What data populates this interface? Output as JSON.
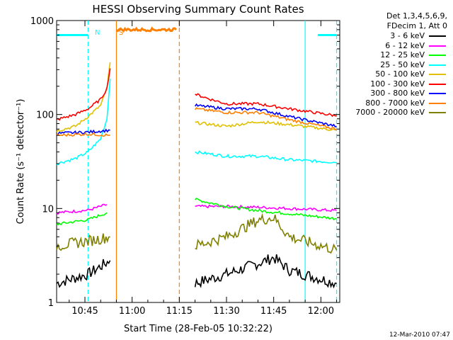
{
  "chart_data": {
    "type": "line",
    "title": "HESSI Observing Summary Count Rates",
    "xlabel": "Start Time (28-Feb-05 10:32:22)",
    "ylabel": "Count Rate (s⁻¹ detector⁻¹)",
    "yscale": "log",
    "ylim": [
      1,
      1000
    ],
    "xlim_minutes": [
      36,
      126
    ],
    "xticks": [
      {
        "value": 45,
        "label": "10:45"
      },
      {
        "value": 60,
        "label": "11:00"
      },
      {
        "value": 75,
        "label": "11:15"
      },
      {
        "value": 90,
        "label": "11:30"
      },
      {
        "value": 105,
        "label": "11:45"
      },
      {
        "value": 120,
        "label": "12:00"
      }
    ],
    "yticks": [
      {
        "value": 1,
        "label": "1"
      },
      {
        "value": 10,
        "label": "10"
      },
      {
        "value": 100,
        "label": "100"
      },
      {
        "value": 1000,
        "label": "1000"
      }
    ],
    "legend_title": [
      "Det 1,3,4,5,6,9,",
      "FDecim 1, Att 0"
    ],
    "series": [
      {
        "name": "3 - 6 keV",
        "color": "#000000",
        "segments": [
          [
            [
              36,
              1.6
            ],
            [
              46,
              2.0
            ],
            [
              53,
              2.8
            ]
          ],
          [
            [
              80,
              1.6
            ],
            [
              90,
              2.0
            ],
            [
              100,
              2.6
            ],
            [
              105,
              3.0
            ],
            [
              110,
              2.2
            ],
            [
              125,
              1.6
            ]
          ]
        ]
      },
      {
        "name": "6 - 12 keV",
        "color": "#ff00ff",
        "segments": [
          [
            [
              36,
              9.0
            ],
            [
              46,
              9.6
            ],
            [
              52,
              11.0
            ]
          ],
          [
            [
              80,
              10.5
            ],
            [
              90,
              10.5
            ],
            [
              100,
              10.3
            ],
            [
              110,
              10.0
            ],
            [
              125,
              9.5
            ]
          ]
        ]
      },
      {
        "name": "12 - 25 keV",
        "color": "#00ff00",
        "segments": [
          [
            [
              36,
              6.8
            ],
            [
              46,
              7.6
            ],
            [
              52,
              9.0
            ]
          ],
          [
            [
              80,
              12.5
            ],
            [
              90,
              10.5
            ],
            [
              100,
              9.5
            ],
            [
              110,
              8.8
            ],
            [
              125,
              7.8
            ]
          ]
        ]
      },
      {
        "name": "25 - 50 keV",
        "color": "#00ffff",
        "segments": [
          [
            [
              36,
              30
            ],
            [
              42,
              34
            ],
            [
              46,
              40
            ],
            [
              50,
              55
            ],
            [
              52,
              90
            ],
            [
              53,
              240
            ]
          ],
          [
            [
              80,
              40
            ],
            [
              90,
              36
            ],
            [
              100,
              36
            ],
            [
              110,
              33
            ],
            [
              125,
              31
            ]
          ]
        ]
      },
      {
        "name": "50 - 100 keV",
        "color": "#e0c000",
        "segments": [
          [
            [
              36,
              67
            ],
            [
              42,
              75
            ],
            [
              46,
              95
            ],
            [
              50,
              125
            ],
            [
              52,
              190
            ],
            [
              53,
              360
            ]
          ],
          [
            [
              80,
              82
            ],
            [
              90,
              75
            ],
            [
              100,
              84
            ],
            [
              110,
              78
            ],
            [
              125,
              68
            ]
          ]
        ]
      },
      {
        "name": "100 - 300 keV",
        "color": "#ff0000",
        "segments": [
          [
            [
              36,
              88
            ],
            [
              42,
              100
            ],
            [
              46,
              115
            ],
            [
              50,
              145
            ],
            [
              52,
              190
            ],
            [
              53,
              310
            ]
          ],
          [
            [
              80,
              165
            ],
            [
              85,
              145
            ],
            [
              90,
              130
            ],
            [
              100,
              130
            ],
            [
              110,
              115
            ],
            [
              125,
              97
            ]
          ]
        ]
      },
      {
        "name": "300 - 800 keV",
        "color": "#0000ff",
        "segments": [
          [
            [
              36,
              63
            ],
            [
              46,
              65
            ],
            [
              53,
              68
            ]
          ],
          [
            [
              80,
              125
            ],
            [
              90,
              115
            ],
            [
              100,
              115
            ],
            [
              110,
              95
            ],
            [
              125,
              75
            ]
          ]
        ]
      },
      {
        "name": "800 - 7000 keV",
        "color": "#ff8000",
        "segments": [
          [
            [
              36,
              60
            ],
            [
              46,
              62
            ],
            [
              53,
              60
            ]
          ],
          [
            [
              80,
              115
            ],
            [
              90,
              105
            ],
            [
              100,
              105
            ],
            [
              110,
              88
            ],
            [
              125,
              70
            ]
          ],
          [
            [
              55,
              800
            ],
            [
              74,
              800
            ]
          ]
        ]
      },
      {
        "name": "7000 - 20000 keV",
        "color": "#808000",
        "segments": [
          [
            [
              36,
              4.0
            ],
            [
              46,
              4.5
            ],
            [
              53,
              5.0
            ]
          ],
          [
            [
              80,
              4.0
            ],
            [
              90,
              5.0
            ],
            [
              100,
              7.5
            ],
            [
              105,
              8.0
            ],
            [
              110,
              5.0
            ],
            [
              125,
              3.6
            ]
          ]
        ]
      }
    ],
    "attenuator_segments": [
      [
        36,
        46,
        700
      ],
      [
        119,
        125,
        700
      ]
    ],
    "markers": [
      {
        "label": "N",
        "x": 49,
        "color": "#00ffff"
      },
      {
        "label": "S",
        "x": 56.5,
        "color": "#ff8000"
      }
    ],
    "vlines": [
      {
        "x": 46,
        "color": "#00ffff",
        "style": "dashed"
      },
      {
        "x": 55,
        "color": "#ff8000",
        "style": "solid"
      },
      {
        "x": 75,
        "color": "#ff8000",
        "style": "dashed"
      },
      {
        "x": 115,
        "color": "#00ffff",
        "style": "solid"
      },
      {
        "x": 125,
        "color": "#00ffff",
        "style": "dashed"
      }
    ],
    "footer_date": "12-Mar-2010 07:47"
  }
}
